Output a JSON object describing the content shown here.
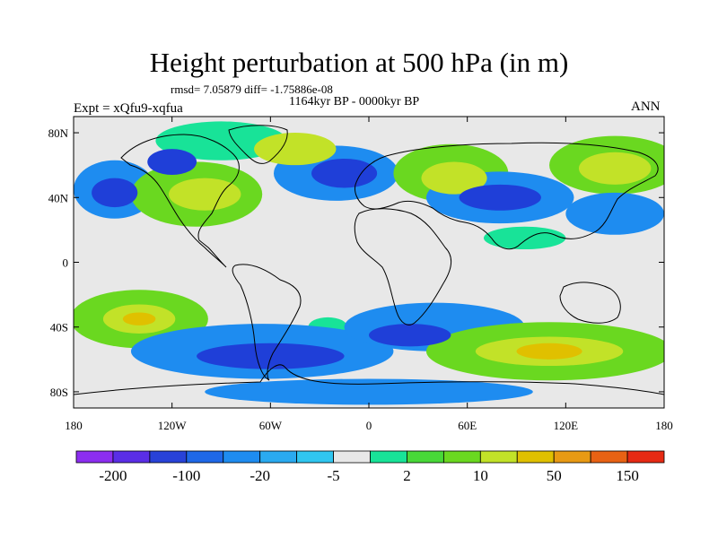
{
  "title": "Height perturbation at 500 hPa (in m)",
  "stats": "rmsd= 7.05879 diff= -1.75886e-08",
  "period": "1164kyr BP - 0000kyr BP",
  "experiment": "Expt = xQfu9-xqfua",
  "season": "ANN",
  "map": {
    "projection": "cylindrical-equidistant",
    "lon_range": [
      -180,
      180
    ],
    "lat_range": [
      -90,
      90
    ],
    "lon_ticks": [
      {
        "value": -180,
        "label": "180"
      },
      {
        "value": -120,
        "label": "120W"
      },
      {
        "value": -60,
        "label": "60W"
      },
      {
        "value": 0,
        "label": "0"
      },
      {
        "value": 60,
        "label": "60E"
      },
      {
        "value": 120,
        "label": "120E"
      },
      {
        "value": 180,
        "label": "180"
      }
    ],
    "lat_ticks": [
      {
        "value": 80,
        "label": "80N"
      },
      {
        "value": 40,
        "label": "40N"
      },
      {
        "value": 0,
        "label": "0"
      },
      {
        "value": -40,
        "label": "40S"
      },
      {
        "value": -80,
        "label": "80S"
      }
    ],
    "background_color": "#e8e8e8",
    "anomalies": [
      {
        "lon": -90,
        "lat": 75,
        "rx": 40,
        "ry": 12,
        "level": 1
      },
      {
        "lon": -45,
        "lat": 70,
        "rx": 25,
        "ry": 10,
        "level": 3
      },
      {
        "lon": -120,
        "lat": 62,
        "rx": 15,
        "ry": 8,
        "level": -3
      },
      {
        "lon": -155,
        "lat": 45,
        "rx": 25,
        "ry": 18,
        "level": -2
      },
      {
        "lon": -155,
        "lat": 43,
        "rx": 14,
        "ry": 9,
        "level": -3
      },
      {
        "lon": -105,
        "lat": 42,
        "rx": 40,
        "ry": 20,
        "level": 2
      },
      {
        "lon": -100,
        "lat": 42,
        "rx": 22,
        "ry": 10,
        "level": 3
      },
      {
        "lon": -20,
        "lat": 55,
        "rx": 38,
        "ry": 17,
        "level": -2
      },
      {
        "lon": -15,
        "lat": 55,
        "rx": 20,
        "ry": 9,
        "level": -3
      },
      {
        "lon": 50,
        "lat": 55,
        "rx": 35,
        "ry": 18,
        "level": 2
      },
      {
        "lon": 52,
        "lat": 52,
        "rx": 20,
        "ry": 10,
        "level": 3
      },
      {
        "lon": 80,
        "lat": 40,
        "rx": 45,
        "ry": 16,
        "level": -2
      },
      {
        "lon": 80,
        "lat": 40,
        "rx": 25,
        "ry": 8,
        "level": -3
      },
      {
        "lon": 150,
        "lat": 60,
        "rx": 40,
        "ry": 18,
        "level": 2
      },
      {
        "lon": 150,
        "lat": 58,
        "rx": 22,
        "ry": 10,
        "level": 3
      },
      {
        "lon": 150,
        "lat": 30,
        "rx": 30,
        "ry": 13,
        "level": -2
      },
      {
        "lon": 95,
        "lat": 15,
        "rx": 25,
        "ry": 7,
        "level": 1
      },
      {
        "lon": -140,
        "lat": -35,
        "rx": 42,
        "ry": 18,
        "level": 2
      },
      {
        "lon": -140,
        "lat": -35,
        "rx": 22,
        "ry": 9,
        "level": 3
      },
      {
        "lon": -140,
        "lat": -35,
        "rx": 10,
        "ry": 4,
        "level": 4
      },
      {
        "lon": -65,
        "lat": -55,
        "rx": 80,
        "ry": 17,
        "level": -2
      },
      {
        "lon": -60,
        "lat": -58,
        "rx": 45,
        "ry": 8,
        "level": -3
      },
      {
        "lon": 40,
        "lat": -40,
        "rx": 55,
        "ry": 15,
        "level": -2
      },
      {
        "lon": 25,
        "lat": -45,
        "rx": 25,
        "ry": 7,
        "level": -3
      },
      {
        "lon": 110,
        "lat": -55,
        "rx": 75,
        "ry": 18,
        "level": 2
      },
      {
        "lon": 110,
        "lat": -55,
        "rx": 45,
        "ry": 9,
        "level": 3
      },
      {
        "lon": 110,
        "lat": -55,
        "rx": 20,
        "ry": 5,
        "level": 4
      },
      {
        "lon": -25,
        "lat": -40,
        "rx": 12,
        "ry": 6,
        "level": 1
      },
      {
        "lon": 0,
        "lat": -80,
        "rx": 100,
        "ry": 8,
        "level": -2
      }
    ],
    "level_colors": {
      "-3": "#1f3fd8",
      "-2": "#1e8cf0",
      "-1": "#30c6f0",
      "1": "#18e398",
      "2": "#6ad820",
      "3": "#c2e228",
      "4": "#e0c000"
    }
  },
  "colorbar": {
    "colors": [
      "#8c2ef0",
      "#5a2ee6",
      "#2842d8",
      "#1e68e8",
      "#1e8cf0",
      "#2aaaf0",
      "#30c6f0",
      "#e8e8e8",
      "#18e398",
      "#48d838",
      "#6ad820",
      "#c2e228",
      "#e0c000",
      "#e89a14",
      "#e86214",
      "#e62a14"
    ],
    "labels": [
      {
        "boundary": 1,
        "text": "-200"
      },
      {
        "boundary": 3,
        "text": "-100"
      },
      {
        "boundary": 5,
        "text": "-20"
      },
      {
        "boundary": 7,
        "text": "-5"
      },
      {
        "boundary": 9,
        "text": "2"
      },
      {
        "boundary": 11,
        "text": "10"
      },
      {
        "boundary": 13,
        "text": "50"
      },
      {
        "boundary": 15,
        "text": "150"
      }
    ]
  }
}
